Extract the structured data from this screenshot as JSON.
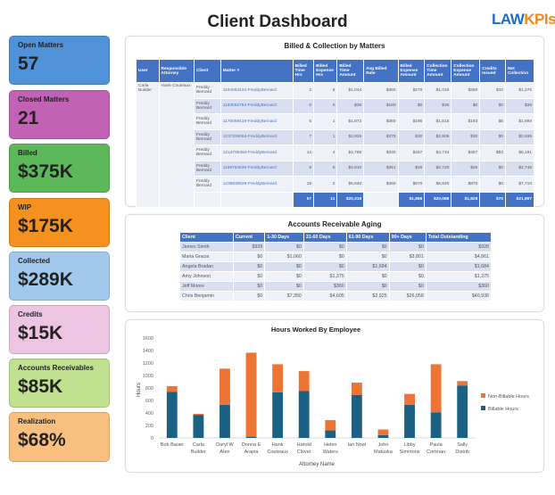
{
  "header": {
    "title": "Client Dashboard",
    "logo_a": "LAW",
    "logo_b": "KPIs"
  },
  "cards": [
    {
      "label": "Open Matters",
      "value": "57",
      "color": "#4f92d8"
    },
    {
      "label": "Closed Matters",
      "value": "21",
      "color": "#c262b4"
    },
    {
      "label": "Billed",
      "value": "$375K",
      "color": "#5db85a"
    },
    {
      "label": "WIP",
      "value": "$175K",
      "color": "#f5921f"
    },
    {
      "label": "Collected",
      "value": "$289K",
      "color": "#a3c8ee"
    },
    {
      "label": "Credits",
      "value": "$15K",
      "color": "#ecc5e2"
    },
    {
      "label": "Accounts Receivables",
      "value": "$85K",
      "color": "#c0e190"
    },
    {
      "label": "Realization",
      "value": "$68%",
      "color": "#f9bf7e"
    }
  ],
  "matters": {
    "title": "Billed & Collection by Matters",
    "headers": [
      "User",
      "Responsible Attorney",
      "Client",
      "Matter #",
      "Billed Time Hrs",
      "Billed Expense Hrs",
      "Billed Time Amount",
      "Avg Billed Rate",
      "Billed Expense Amount",
      "Collection Time Amount",
      "Collection Expense Amount",
      "Credits Issued",
      "Net Collection"
    ],
    "user": "Carla Builder",
    "attorney": "Hank Couteaux",
    "rows": [
      [
        "Freddy Bernard",
        "1194063424-FreddyBernard",
        "2",
        "5",
        "$1,044",
        "$360",
        "$270",
        "$1,016",
        "$260",
        "$10",
        "$1,276"
      ],
      [
        "Freddy Bernard",
        "1193052784-FreddyBernard",
        "0",
        "0",
        "$36",
        "$180",
        "$0",
        "$36",
        "$0",
        "$0",
        "$36"
      ],
      [
        "Freddy Bernard",
        "1176059419-FreddyBernard",
        "5",
        "1",
        "$1,872",
        "$360",
        "$190",
        "$1,815",
        "$183",
        "$6",
        "$1,999"
      ],
      [
        "Freddy Bernard",
        "1237329064-FreddyBernard",
        "7",
        "1",
        "$2,926",
        "$375",
        "$30",
        "$2,905",
        "$30",
        "$0",
        "$2,936"
      ],
      [
        "Freddy Bernard",
        "1214785384-FreddyBernard",
        "14",
        "4",
        "$4,788",
        "$330",
        "$457",
        "$4,734",
        "$457",
        "$53",
        "$5,191"
      ],
      [
        "Freddy Bernard",
        "1199794639-FreddyBernard",
        "8",
        "0",
        "$2,810",
        "$351",
        "$26",
        "$2,720",
        "$26",
        "$0",
        "$2,746"
      ],
      [
        "Freddy Bernard",
        "1236830029-FreddyBernard",
        "19",
        "2",
        "$6,840",
        "$360",
        "$870",
        "$6,840",
        "$870",
        "$0",
        "$7,710"
      ]
    ],
    "totals": [
      "57",
      "11",
      "$20,316",
      "",
      "$1,866",
      "$20,068",
      "$1,828",
      "$70",
      "$21,897"
    ]
  },
  "ar": {
    "title": "Accounts Receivable Aging",
    "headers": [
      "Client",
      "Current",
      "1-30 Days",
      "31-60 Days",
      "61-90 Days",
      "90+ Days",
      "Total Outstanding"
    ],
    "rows": [
      [
        "James Simth",
        "$928",
        "$0",
        "$0",
        "$0",
        "$0",
        "$928"
      ],
      [
        "Maria Gracia",
        "$0",
        "$1,060",
        "$0",
        "$0",
        "$3,801",
        "$4,861"
      ],
      [
        "Angela Bradan",
        "$0",
        "$0",
        "$0",
        "$1,684",
        "$0",
        "$1,684"
      ],
      [
        "Amy Johnson",
        "$0",
        "$0",
        "$1,375",
        "$0",
        "$0",
        "$1,375"
      ],
      [
        "Jeff Moore",
        "$0",
        "$0",
        "$360",
        "$0",
        "$0",
        "$360"
      ],
      [
        "Chris Benjamin",
        "$0",
        "$7,350",
        "$4,605",
        "$2,925",
        "$26,058",
        "$40,938"
      ]
    ]
  },
  "chart_data": {
    "type": "bar",
    "stacked": true,
    "title": "Hours Worked By Employee",
    "xlabel": "Attorney  Name",
    "ylabel": "Hours",
    "ylim": [
      0,
      1600
    ],
    "yticks": [
      0,
      200,
      400,
      600,
      800,
      1000,
      1200,
      1400,
      1600
    ],
    "categories": [
      [
        "Bob Bauer"
      ],
      [
        "Carla",
        "Builder"
      ],
      [
        "Daryl W",
        "Aten"
      ],
      [
        "Donna E",
        "Arapia"
      ],
      [
        "Hank",
        "Couteaux"
      ],
      [
        "Harold",
        "Clover"
      ],
      [
        "Helen",
        "Waters"
      ],
      [
        "Ian Noel"
      ],
      [
        "John",
        "Matuska"
      ],
      [
        "Libby",
        "Simmons"
      ],
      [
        "Paula",
        "Cortman"
      ],
      [
        "Sally",
        "Distrib"
      ]
    ],
    "series": [
      {
        "name": "Billable Hours",
        "color": "#1b6183",
        "values": [
          740,
          370,
          530,
          20,
          730,
          750,
          120,
          690,
          45,
          530,
          410,
          840
        ]
      },
      {
        "name": "Non-Billable Hours",
        "color": "#ed7434",
        "values": [
          90,
          15,
          580,
          1345,
          450,
          320,
          165,
          195,
          90,
          175,
          770,
          70
        ]
      }
    ],
    "legend": "right"
  }
}
